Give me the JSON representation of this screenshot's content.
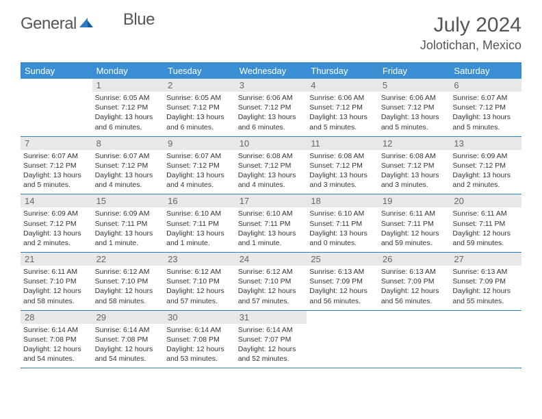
{
  "logo": {
    "gray": "General",
    "blue": "Blue"
  },
  "title": "July 2024",
  "location": "Jolotichan, Mexico",
  "colors": {
    "header_bg": "#3a8fd4",
    "header_border": "#2d7cc1",
    "daynum_bg": "#e8e8e8",
    "text": "#333333",
    "title_text": "#555555"
  },
  "day_names": [
    "Sunday",
    "Monday",
    "Tuesday",
    "Wednesday",
    "Thursday",
    "Friday",
    "Saturday"
  ],
  "weeks": [
    [
      null,
      {
        "n": "1",
        "sr": "6:05 AM",
        "ss": "7:12 PM",
        "dl": "13 hours and 6 minutes."
      },
      {
        "n": "2",
        "sr": "6:05 AM",
        "ss": "7:12 PM",
        "dl": "13 hours and 6 minutes."
      },
      {
        "n": "3",
        "sr": "6:06 AM",
        "ss": "7:12 PM",
        "dl": "13 hours and 6 minutes."
      },
      {
        "n": "4",
        "sr": "6:06 AM",
        "ss": "7:12 PM",
        "dl": "13 hours and 5 minutes."
      },
      {
        "n": "5",
        "sr": "6:06 AM",
        "ss": "7:12 PM",
        "dl": "13 hours and 5 minutes."
      },
      {
        "n": "6",
        "sr": "6:07 AM",
        "ss": "7:12 PM",
        "dl": "13 hours and 5 minutes."
      }
    ],
    [
      {
        "n": "7",
        "sr": "6:07 AM",
        "ss": "7:12 PM",
        "dl": "13 hours and 5 minutes."
      },
      {
        "n": "8",
        "sr": "6:07 AM",
        "ss": "7:12 PM",
        "dl": "13 hours and 4 minutes."
      },
      {
        "n": "9",
        "sr": "6:07 AM",
        "ss": "7:12 PM",
        "dl": "13 hours and 4 minutes."
      },
      {
        "n": "10",
        "sr": "6:08 AM",
        "ss": "7:12 PM",
        "dl": "13 hours and 4 minutes."
      },
      {
        "n": "11",
        "sr": "6:08 AM",
        "ss": "7:12 PM",
        "dl": "13 hours and 3 minutes."
      },
      {
        "n": "12",
        "sr": "6:08 AM",
        "ss": "7:12 PM",
        "dl": "13 hours and 3 minutes."
      },
      {
        "n": "13",
        "sr": "6:09 AM",
        "ss": "7:12 PM",
        "dl": "13 hours and 2 minutes."
      }
    ],
    [
      {
        "n": "14",
        "sr": "6:09 AM",
        "ss": "7:12 PM",
        "dl": "13 hours and 2 minutes."
      },
      {
        "n": "15",
        "sr": "6:09 AM",
        "ss": "7:11 PM",
        "dl": "13 hours and 1 minute."
      },
      {
        "n": "16",
        "sr": "6:10 AM",
        "ss": "7:11 PM",
        "dl": "13 hours and 1 minute."
      },
      {
        "n": "17",
        "sr": "6:10 AM",
        "ss": "7:11 PM",
        "dl": "13 hours and 1 minute."
      },
      {
        "n": "18",
        "sr": "6:10 AM",
        "ss": "7:11 PM",
        "dl": "13 hours and 0 minutes."
      },
      {
        "n": "19",
        "sr": "6:11 AM",
        "ss": "7:11 PM",
        "dl": "12 hours and 59 minutes."
      },
      {
        "n": "20",
        "sr": "6:11 AM",
        "ss": "7:11 PM",
        "dl": "12 hours and 59 minutes."
      }
    ],
    [
      {
        "n": "21",
        "sr": "6:11 AM",
        "ss": "7:10 PM",
        "dl": "12 hours and 58 minutes."
      },
      {
        "n": "22",
        "sr": "6:12 AM",
        "ss": "7:10 PM",
        "dl": "12 hours and 58 minutes."
      },
      {
        "n": "23",
        "sr": "6:12 AM",
        "ss": "7:10 PM",
        "dl": "12 hours and 57 minutes."
      },
      {
        "n": "24",
        "sr": "6:12 AM",
        "ss": "7:10 PM",
        "dl": "12 hours and 57 minutes."
      },
      {
        "n": "25",
        "sr": "6:13 AM",
        "ss": "7:09 PM",
        "dl": "12 hours and 56 minutes."
      },
      {
        "n": "26",
        "sr": "6:13 AM",
        "ss": "7:09 PM",
        "dl": "12 hours and 56 minutes."
      },
      {
        "n": "27",
        "sr": "6:13 AM",
        "ss": "7:09 PM",
        "dl": "12 hours and 55 minutes."
      }
    ],
    [
      {
        "n": "28",
        "sr": "6:14 AM",
        "ss": "7:08 PM",
        "dl": "12 hours and 54 minutes."
      },
      {
        "n": "29",
        "sr": "6:14 AM",
        "ss": "7:08 PM",
        "dl": "12 hours and 54 minutes."
      },
      {
        "n": "30",
        "sr": "6:14 AM",
        "ss": "7:08 PM",
        "dl": "12 hours and 53 minutes."
      },
      {
        "n": "31",
        "sr": "6:14 AM",
        "ss": "7:07 PM",
        "dl": "12 hours and 52 minutes."
      },
      null,
      null,
      null
    ]
  ],
  "labels": {
    "sunrise": "Sunrise:",
    "sunset": "Sunset:",
    "daylight": "Daylight:"
  }
}
